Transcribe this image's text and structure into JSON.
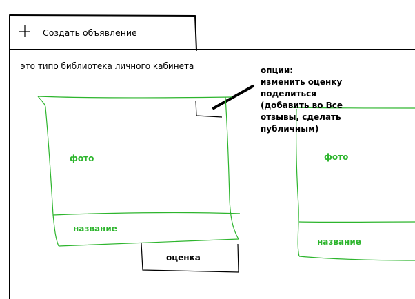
{
  "header": {
    "create_button_label": "Создать объявление",
    "plus_icon": "plus-icon"
  },
  "library": {
    "subtitle": "это типо библиотека личного кабинета"
  },
  "options_note": {
    "lines": [
      "опции:",
      "изменить оценку",
      "поделиться",
      "(добавить во Все",
      "отзывы, сделать",
      "публичным)"
    ]
  },
  "cards": [
    {
      "photo_label": "фото",
      "title_label": "название",
      "rating_label": "оценка"
    },
    {
      "photo_label": "фото",
      "title_label": "название"
    }
  ],
  "colors": {
    "ink": "#000000",
    "sketch_green": "#2db52d",
    "background": "#ffffff"
  }
}
